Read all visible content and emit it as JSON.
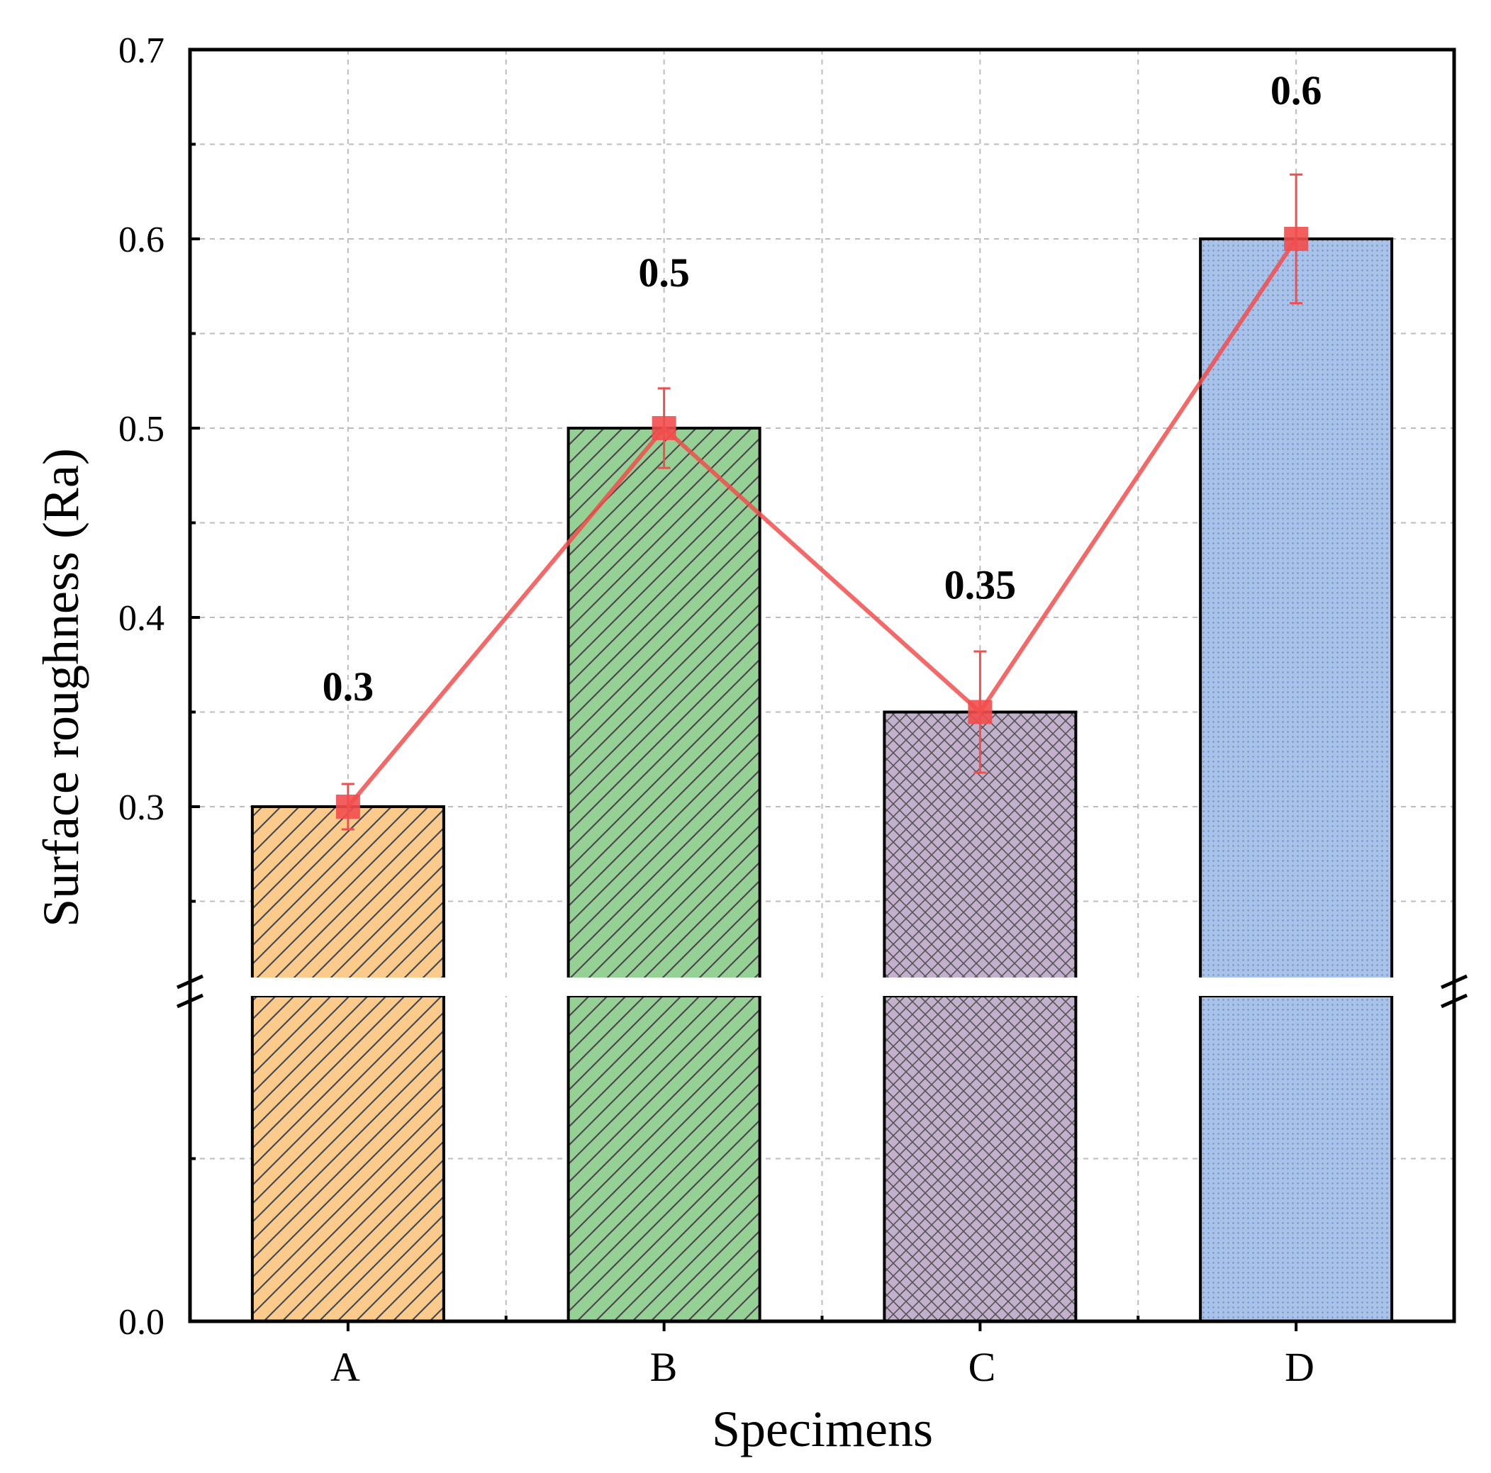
{
  "chart_data": {
    "type": "bar",
    "categories": [
      "A",
      "B",
      "C",
      "D"
    ],
    "values": [
      0.3,
      0.5,
      0.35,
      0.6
    ],
    "errors": [
      0.012,
      0.021,
      0.032,
      0.034
    ],
    "data_labels": [
      "0.3",
      "0.5",
      "0.35",
      "0.6"
    ],
    "bar_colors": [
      "#fccb8c",
      "#95d095",
      "#c2b0cd",
      "#a8c2e8"
    ],
    "bar_patterns": [
      "diagonal",
      "diagonal",
      "crosshatch",
      "dots"
    ],
    "line_color": "#f24e4e",
    "xlabel": "Specimens",
    "ylabel": "Surface roughness (Ra)",
    "ylim_upper": [
      0.2,
      0.7
    ],
    "ylim_lower": [
      0.0,
      0.2
    ],
    "yticks_upper": [
      "0.3",
      "0.4",
      "0.5",
      "0.6",
      "0.7"
    ],
    "yticks_lower": [
      "0.0"
    ],
    "axis_break": true,
    "grid": true
  }
}
